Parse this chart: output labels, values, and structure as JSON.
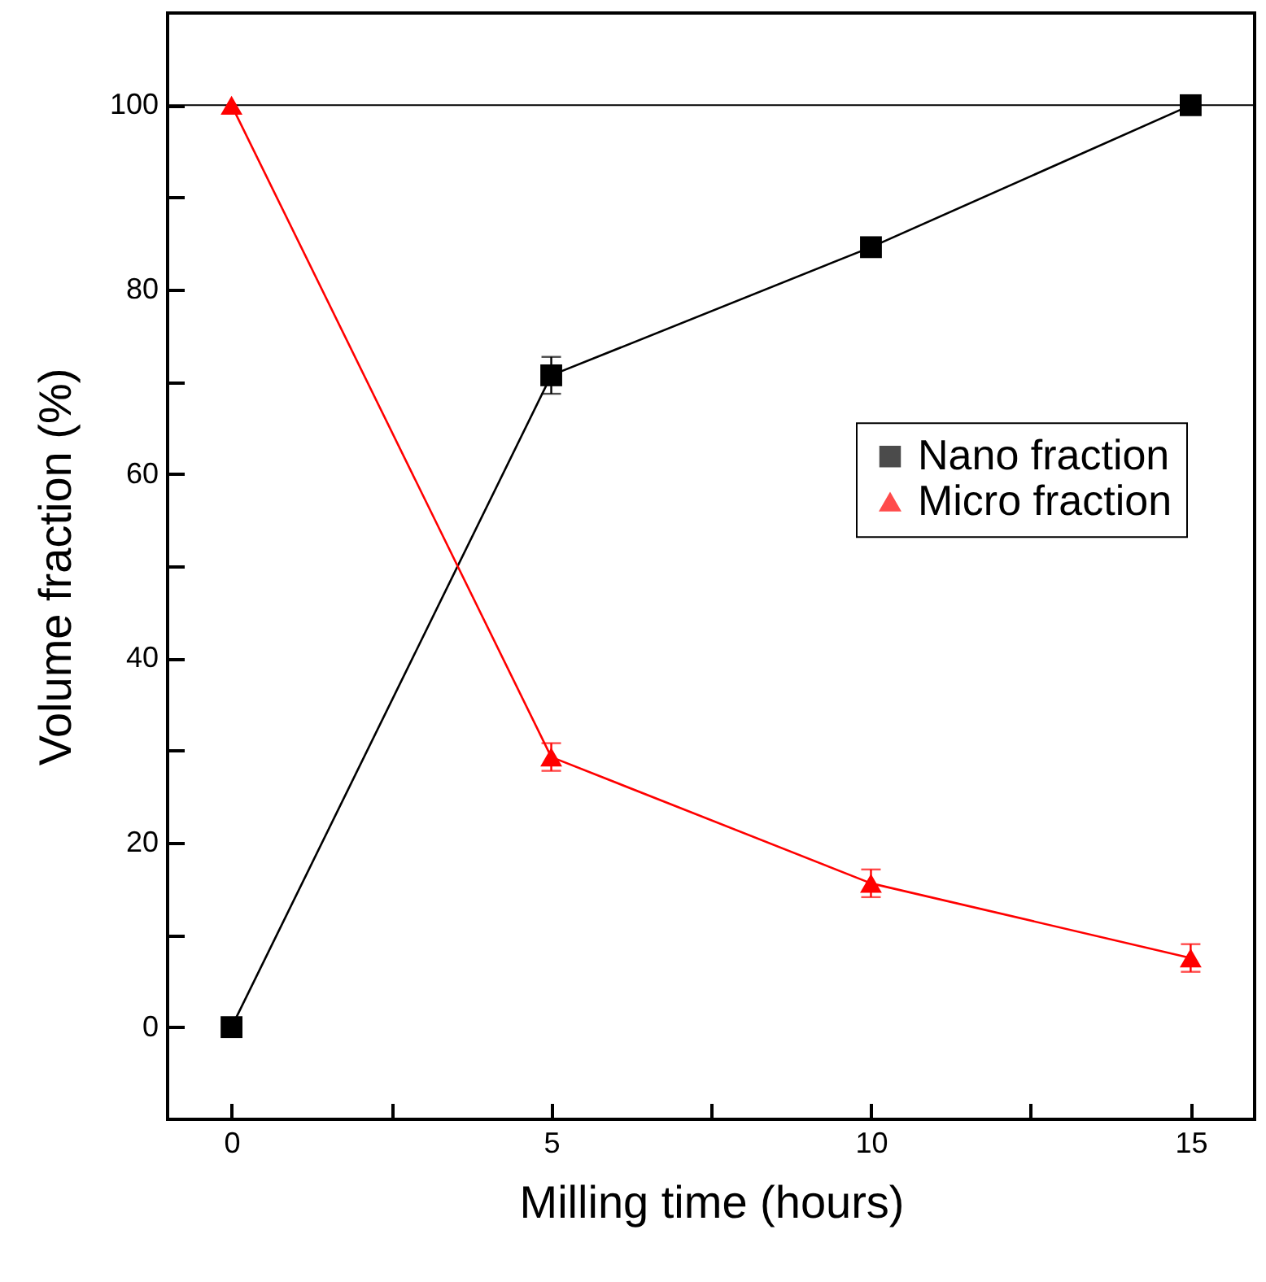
{
  "chart_data": {
    "type": "line",
    "xlabel": "Milling time (hours)",
    "ylabel": "Volume fraction (%)",
    "x": [
      0,
      5,
      10,
      15
    ],
    "series": [
      {
        "name": "Nano fraction",
        "color": "#000000",
        "marker": "square",
        "values": [
          0,
          70.7,
          84.6,
          100
        ],
        "errors": [
          null,
          2,
          null,
          null
        ]
      },
      {
        "name": "Micro fraction",
        "color": "#ff0000",
        "marker": "triangle",
        "values": [
          100,
          29.3,
          15.6,
          7.5
        ],
        "errors": [
          null,
          1.5,
          1.5,
          1.5
        ]
      }
    ],
    "xlim": [
      -1,
      16
    ],
    "xticks": [
      0,
      {
        "value": 2.5,
        "label": null
      },
      5,
      {
        "value": 7.5,
        "label": null
      },
      10,
      {
        "value": 12.5,
        "label": null
      },
      15
    ],
    "ylim": [
      -10,
      110
    ],
    "yticks": [
      0,
      {
        "value": 10,
        "label": null
      },
      20,
      {
        "value": 30,
        "label": null
      },
      40,
      {
        "value": 50,
        "label": null
      },
      60,
      {
        "value": 70,
        "label": null
      },
      80,
      {
        "value": 90,
        "label": null
      },
      100
    ],
    "ref_lines": [
      {
        "axis": "y",
        "value": 100,
        "color": "#000000",
        "line_style": "solid"
      }
    ],
    "legend": "right",
    "grid": false,
    "line_style": "solid"
  }
}
